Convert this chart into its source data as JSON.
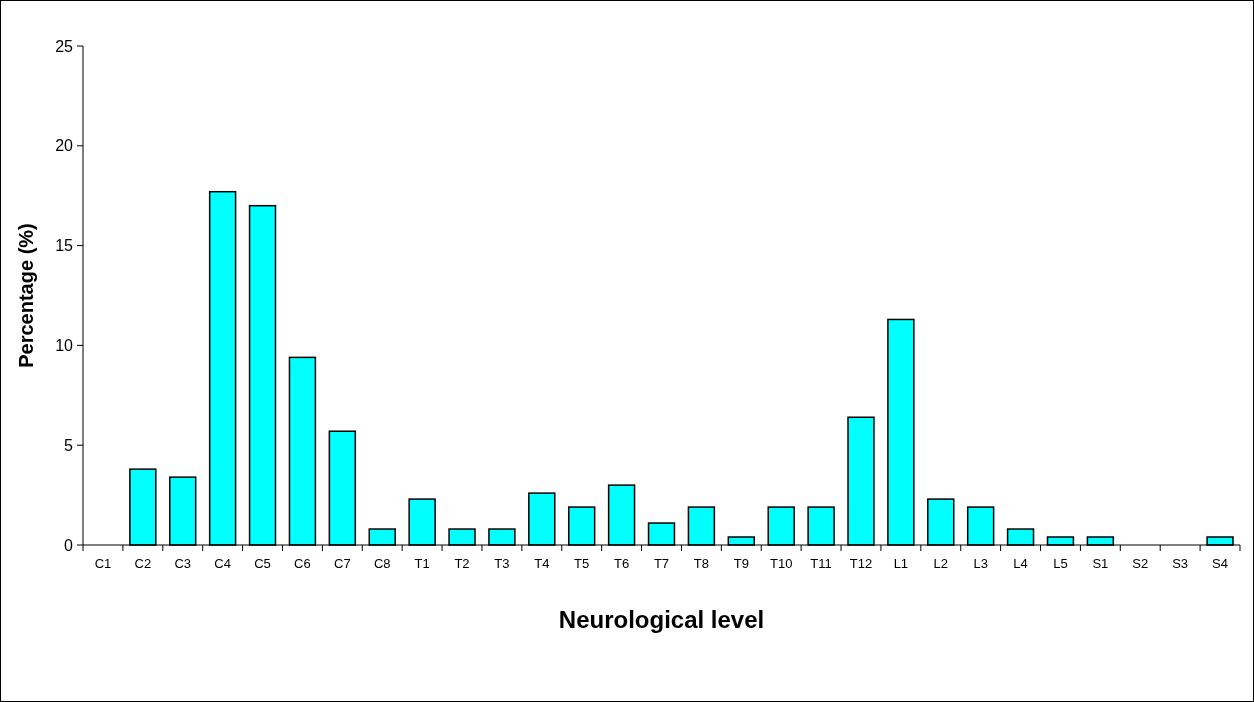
{
  "chart_data": {
    "type": "bar",
    "xlabel": "Neurological level",
    "ylabel": "Percentage (%)",
    "categories": [
      "C1",
      "C2",
      "C3",
      "C4",
      "C5",
      "C6",
      "C7",
      "C8",
      "T1",
      "T2",
      "T3",
      "T4",
      "T5",
      "T6",
      "T7",
      "T8",
      "T9",
      "T10",
      "T11",
      "T12",
      "L1",
      "L2",
      "L3",
      "L4",
      "L5",
      "S1",
      "S2",
      "S3",
      "S4"
    ],
    "values": [
      0,
      3.8,
      3.4,
      17.7,
      17.0,
      9.4,
      5.7,
      0.8,
      2.3,
      0.8,
      0.8,
      2.6,
      1.9,
      3.0,
      1.1,
      1.9,
      0.4,
      1.9,
      1.9,
      6.4,
      11.3,
      2.3,
      1.9,
      0.8,
      0.4,
      0.4,
      0,
      0,
      0.4
    ],
    "color": "#00ffff",
    "ylim": [
      0,
      25
    ],
    "yticks": [
      0,
      5,
      10,
      15,
      20,
      25
    ],
    "grid": false
  }
}
